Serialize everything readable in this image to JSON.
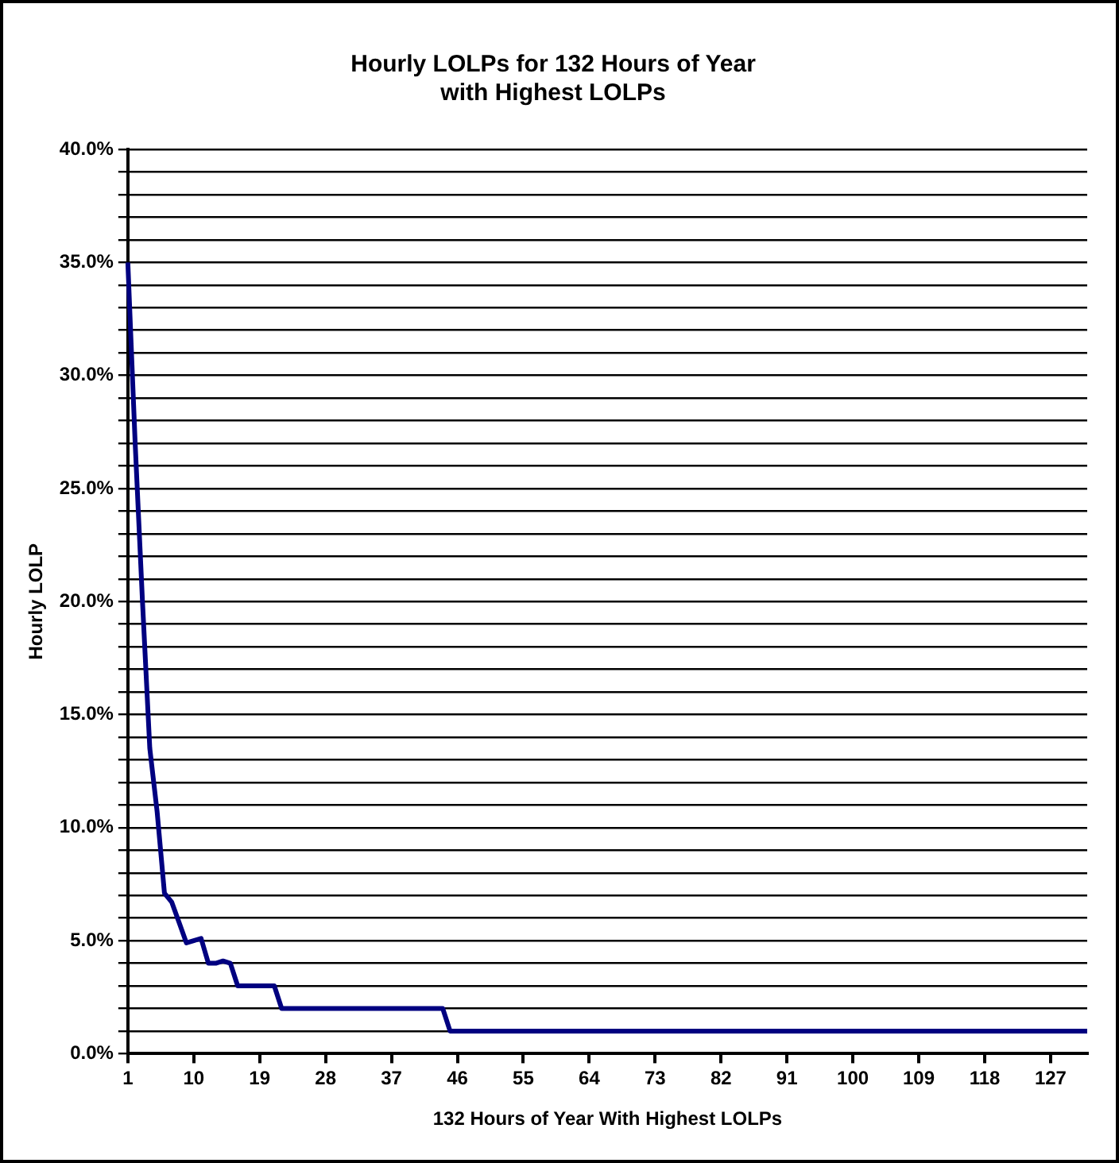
{
  "chart_data": {
    "type": "line",
    "title": "Hourly LOLPs for 132 Hours of Year\nwith Highest LOLPs",
    "xlabel": "132 Hours of Year With Highest LOLPs",
    "ylabel": "Hourly LOLP",
    "categories": [
      "1",
      null,
      null,
      null,
      null,
      null,
      null,
      null,
      null,
      "10",
      null,
      null,
      null,
      null,
      null,
      null,
      null,
      null,
      "19",
      null,
      null,
      null,
      null,
      null,
      null,
      null,
      null,
      "28",
      null,
      null,
      null,
      null,
      null,
      null,
      null,
      null,
      "37",
      null,
      null,
      null,
      null,
      null,
      null,
      null,
      null,
      "46",
      null,
      null,
      null,
      null,
      null,
      null,
      null,
      null,
      "55",
      null,
      null,
      null,
      null,
      null,
      null,
      null,
      null,
      "64",
      null,
      null,
      null,
      null,
      null,
      null,
      null,
      null,
      "73",
      null,
      null,
      null,
      null,
      null,
      null,
      null,
      null,
      "82",
      null,
      null,
      null,
      null,
      null,
      null,
      null,
      null,
      "91",
      null,
      null,
      null,
      null,
      null,
      null,
      null,
      null,
      "100",
      null,
      null,
      null,
      null,
      null,
      null,
      null,
      null,
      "109",
      null,
      null,
      null,
      null,
      null,
      null,
      null,
      null,
      "118",
      null,
      null,
      null,
      null,
      null,
      null,
      null,
      null,
      "127",
      null,
      null,
      null,
      null,
      null
    ],
    "series": [
      {
        "color": "#000080",
        "values": [
          35,
          27,
          20,
          13.5,
          10.7,
          7.1,
          6.7,
          5.8,
          4.9,
          5.0,
          5.1,
          4.0,
          4.0,
          4.1,
          4.0,
          3.0,
          3.0,
          3.0,
          3.0,
          3.0,
          3.0,
          2.0,
          2.0,
          2.0,
          2.0,
          2.0,
          2.0,
          2.0,
          2.0,
          2.0,
          2.0,
          2.0,
          2.0,
          2.0,
          2.0,
          2.0,
          2.0,
          2.0,
          2.0,
          2.0,
          2.0,
          2.0,
          2.0,
          2.0,
          1.0,
          1.0,
          1.0,
          1.0,
          1.0,
          1.0,
          1.0,
          1.0,
          1.0,
          1.0,
          1.0,
          1.0,
          1.0,
          1.0,
          1.0,
          1.0,
          1.0,
          1.0,
          1.0,
          1.0,
          1.0,
          1.0,
          1.0,
          1.0,
          1.0,
          1.0,
          1.0,
          1.0,
          1.0,
          1.0,
          1.0,
          1.0,
          1.0,
          1.0,
          1.0,
          1.0,
          1.0,
          1.0,
          1.0,
          1.0,
          1.0,
          1.0,
          1.0,
          1.0,
          1.0,
          1.0,
          1.0,
          1.0,
          1.0,
          1.0,
          1.0,
          1.0,
          1.0,
          1.0,
          1.0,
          1.0,
          1.0,
          1.0,
          1.0,
          1.0,
          1.0,
          1.0,
          1.0,
          1.0,
          1.0,
          1.0,
          1.0,
          1.0,
          1.0,
          1.0,
          1.0,
          1.0,
          1.0,
          1.0,
          1.0,
          1.0,
          1.0,
          1.0,
          1.0,
          1.0,
          1.0,
          1.0,
          1.0,
          1.0,
          1.0,
          1.0,
          1.0,
          1.0
        ]
      }
    ],
    "ylim": [
      0,
      40
    ],
    "yticks": [
      {
        "value": 0,
        "label": "0.0%"
      },
      {
        "value": 1,
        "label": null
      },
      {
        "value": 2,
        "label": null
      },
      {
        "value": 3,
        "label": null
      },
      {
        "value": 4,
        "label": null
      },
      {
        "value": 5,
        "label": "5.0%"
      },
      {
        "value": 6,
        "label": null
      },
      {
        "value": 7,
        "label": null
      },
      {
        "value": 8,
        "label": null
      },
      {
        "value": 9,
        "label": null
      },
      {
        "value": 10,
        "label": "10.0%"
      },
      {
        "value": 11,
        "label": null
      },
      {
        "value": 12,
        "label": null
      },
      {
        "value": 13,
        "label": null
      },
      {
        "value": 14,
        "label": null
      },
      {
        "value": 15,
        "label": "15.0%"
      },
      {
        "value": 16,
        "label": null
      },
      {
        "value": 17,
        "label": null
      },
      {
        "value": 18,
        "label": null
      },
      {
        "value": 19,
        "label": null
      },
      {
        "value": 20,
        "label": "20.0%"
      },
      {
        "value": 21,
        "label": null
      },
      {
        "value": 22,
        "label": null
      },
      {
        "value": 23,
        "label": null
      },
      {
        "value": 24,
        "label": null
      },
      {
        "value": 25,
        "label": "25.0%"
      },
      {
        "value": 26,
        "label": null
      },
      {
        "value": 27,
        "label": null
      },
      {
        "value": 28,
        "label": null
      },
      {
        "value": 29,
        "label": null
      },
      {
        "value": 30,
        "label": "30.0%"
      },
      {
        "value": 31,
        "label": null
      },
      {
        "value": 32,
        "label": null
      },
      {
        "value": 33,
        "label": null
      },
      {
        "value": 34,
        "label": null
      },
      {
        "value": 35,
        "label": "35.0%"
      },
      {
        "value": 36,
        "label": null
      },
      {
        "value": 37,
        "label": null
      },
      {
        "value": 38,
        "label": null
      },
      {
        "value": 39,
        "label": null
      },
      {
        "value": 40,
        "label": "40.0%"
      }
    ],
    "grid": "y",
    "legend": false,
    "marker": "none",
    "line_style": "solid"
  }
}
